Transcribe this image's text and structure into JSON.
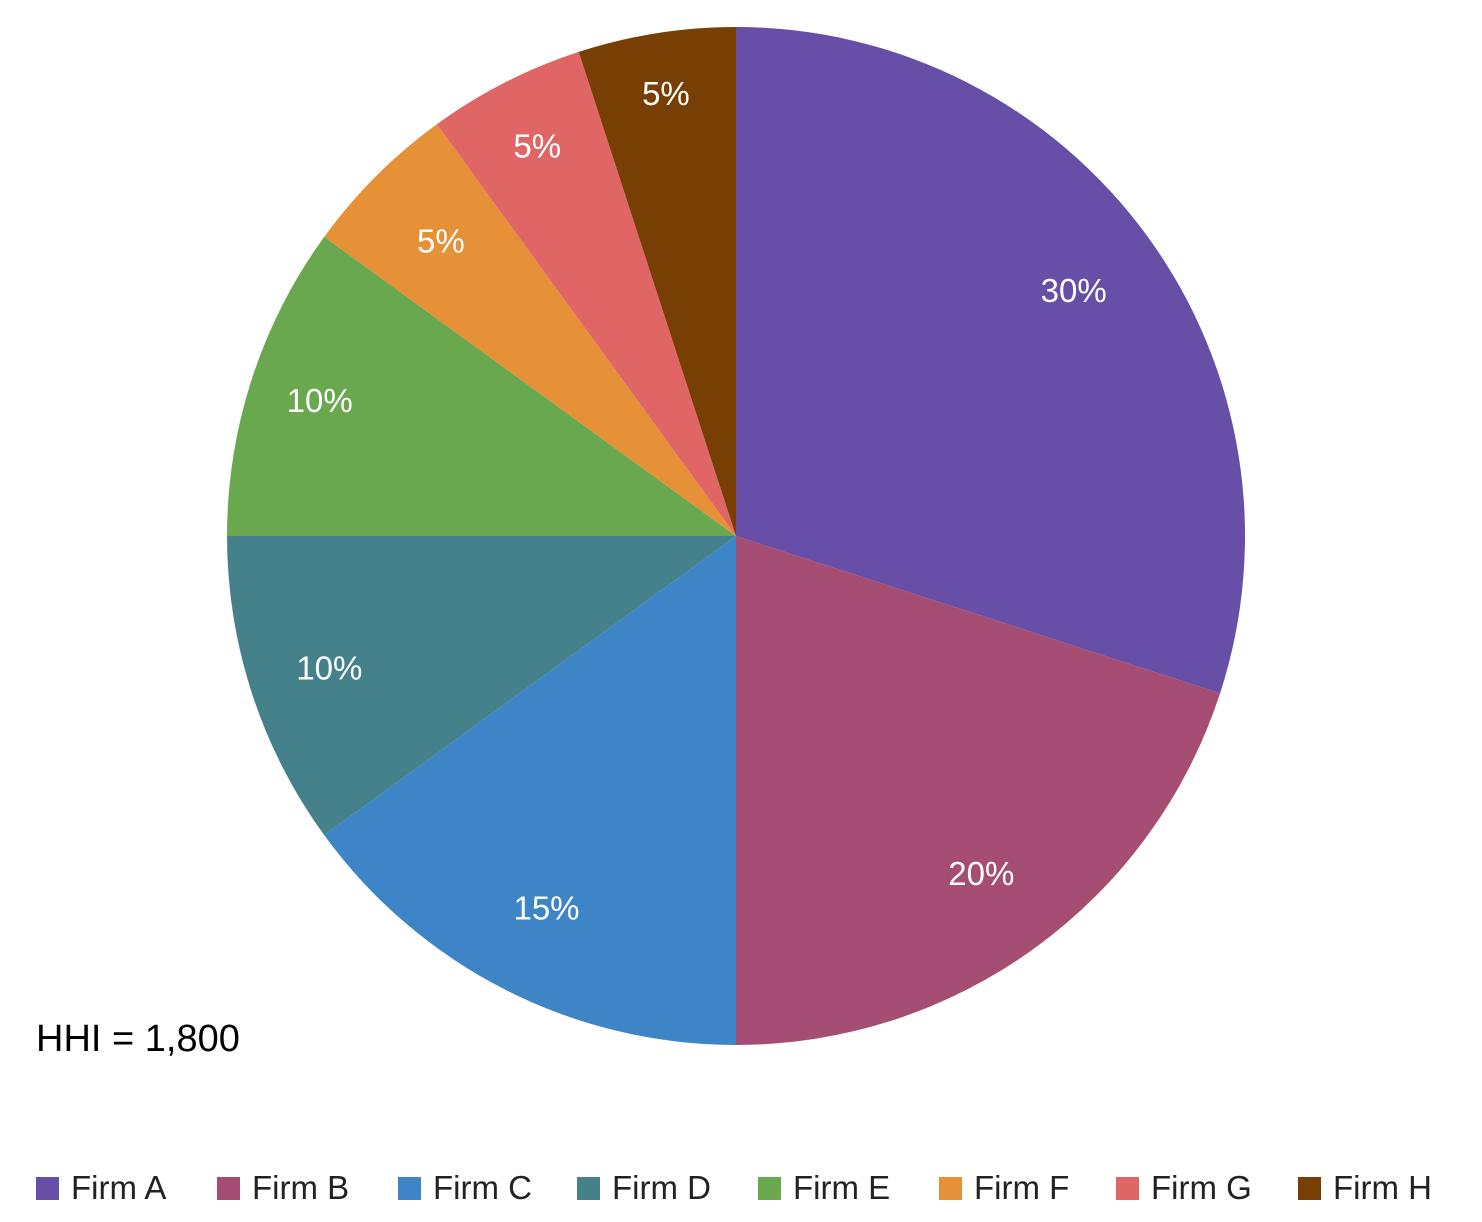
{
  "chart_data": {
    "type": "pie",
    "categories": [
      "Firm A",
      "Firm B",
      "Firm C",
      "Firm D",
      "Firm E",
      "Firm F",
      "Firm G",
      "Firm H"
    ],
    "values": [
      30,
      20,
      15,
      10,
      10,
      5,
      5,
      5
    ],
    "value_labels": [
      "30%",
      "20%",
      "15%",
      "10%",
      "10%",
      "5%",
      "5%",
      "5%"
    ],
    "colors": [
      "#674ea7",
      "#a64d74",
      "#3d85c6",
      "#45818a",
      "#6aa84f",
      "#e69138",
      "#e06666",
      "#783f04"
    ],
    "start_angle_deg": 0,
    "direction": "clockwise",
    "legend_position": "bottom",
    "annotations": [
      "HHI = 1,800"
    ]
  },
  "annotation": {
    "hhi": "HHI = 1,800"
  }
}
